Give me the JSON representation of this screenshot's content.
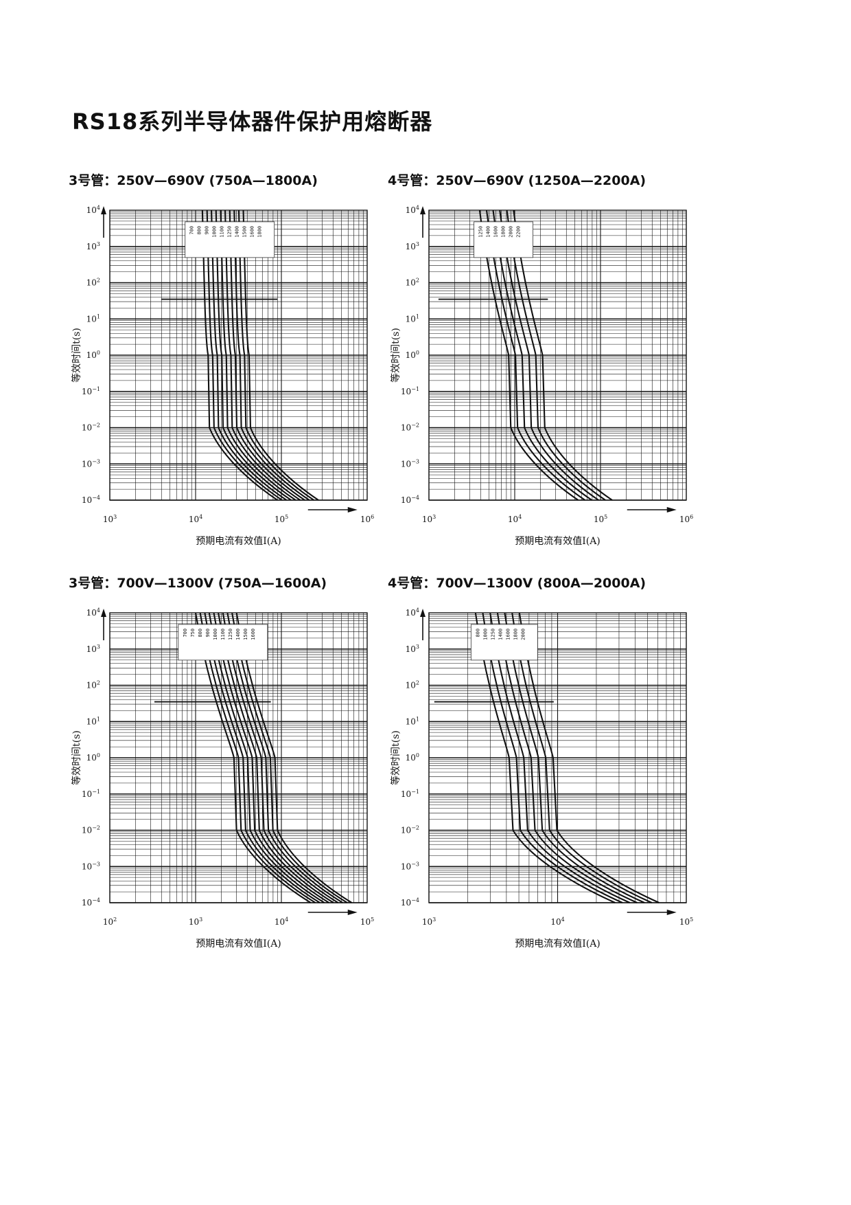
{
  "page": {
    "title": "RS18系列半导体器件保护用熔断器"
  },
  "chart_data": [
    {
      "type": "line",
      "title": "3号管：250V—690V (750A—1800A)",
      "xlabel": "预期电流有效值I(A)",
      "ylabel": "等效时间t(s)",
      "x_scale": "log",
      "y_scale": "log",
      "xlim": [
        1000,
        1000000
      ],
      "ylim": [
        0.0001,
        10000
      ],
      "x_ticks": [
        {
          "b": "10",
          "e": "3"
        },
        {
          "b": "10",
          "e": "4"
        },
        {
          "b": "10",
          "e": "5"
        },
        {
          "b": "10",
          "e": "6"
        }
      ],
      "y_ticks": [
        {
          "b": "10",
          "e": "4"
        },
        {
          "b": "10",
          "e": "3"
        },
        {
          "b": "10",
          "e": "2"
        },
        {
          "b": "10",
          "e": "1"
        },
        {
          "b": "10",
          "e": "0"
        },
        {
          "b": "10",
          "e": "−1"
        },
        {
          "b": "10",
          "e": "−2"
        },
        {
          "b": "10",
          "e": "−3"
        },
        {
          "b": "10",
          "e": "−4"
        }
      ],
      "grid": true,
      "legend": [
        "700",
        "800",
        "900",
        "1000",
        "1100",
        "1250",
        "1400",
        "1500",
        "1600",
        "1800"
      ],
      "legend_position": "top-center",
      "reference_t": 35,
      "curve_model": {
        "top_x": 12000,
        "knee_hi_x": 14000,
        "knee_lo_x": 14500,
        "bottom_x": 90000,
        "step_ratio": 1.13
      },
      "series": [
        {
          "name": "700",
          "x": [
            12000,
            14000,
            14500,
            90000
          ],
          "t": [
            10000,
            1,
            0.01,
            0.0001
          ]
        },
        {
          "name": "800",
          "x": [
            13600,
            15800,
            16400,
            101700
          ],
          "t": [
            10000,
            1,
            0.01,
            0.0001
          ]
        },
        {
          "name": "900",
          "x": [
            15300,
            17900,
            18500,
            114900
          ],
          "t": [
            10000,
            1,
            0.01,
            0.0001
          ]
        },
        {
          "name": "1000",
          "x": [
            17300,
            20200,
            20900,
            129900
          ],
          "t": [
            10000,
            1,
            0.01,
            0.0001
          ]
        },
        {
          "name": "1100",
          "x": [
            19600,
            22800,
            23600,
            146700
          ],
          "t": [
            10000,
            1,
            0.01,
            0.0001
          ]
        },
        {
          "name": "1250",
          "x": [
            22100,
            25800,
            26700,
            165800
          ],
          "t": [
            10000,
            1,
            0.01,
            0.0001
          ]
        },
        {
          "name": "1400",
          "x": [
            25000,
            29100,
            30200,
            187400
          ],
          "t": [
            10000,
            1,
            0.01,
            0.0001
          ]
        },
        {
          "name": "1500",
          "x": [
            28200,
            32900,
            34100,
            211700
          ],
          "t": [
            10000,
            1,
            0.01,
            0.0001
          ]
        },
        {
          "name": "1600",
          "x": [
            31900,
            37200,
            38600,
            239300
          ],
          "t": [
            10000,
            1,
            0.01,
            0.0001
          ]
        },
        {
          "name": "1800",
          "x": [
            36000,
            42000,
            43600,
            270400
          ],
          "t": [
            10000,
            1,
            0.01,
            0.0001
          ]
        }
      ]
    },
    {
      "type": "line",
      "title": "4号管：250V—690V (1250A—2200A)",
      "xlabel": "预期电流有效值I(A)",
      "ylabel": "等效时间t(s)",
      "x_scale": "log",
      "y_scale": "log",
      "xlim": [
        1000,
        1000000
      ],
      "ylim": [
        0.0001,
        10000
      ],
      "x_ticks": [
        {
          "b": "10",
          "e": "3"
        },
        {
          "b": "10",
          "e": "4"
        },
        {
          "b": "10",
          "e": "5"
        },
        {
          "b": "10",
          "e": "6"
        }
      ],
      "y_ticks": [
        {
          "b": "10",
          "e": "4"
        },
        {
          "b": "10",
          "e": "3"
        },
        {
          "b": "10",
          "e": "2"
        },
        {
          "b": "10",
          "e": "1"
        },
        {
          "b": "10",
          "e": "0"
        },
        {
          "b": "10",
          "e": "−1"
        },
        {
          "b": "10",
          "e": "−2"
        },
        {
          "b": "10",
          "e": "−3"
        },
        {
          "b": "10",
          "e": "−4"
        }
      ],
      "grid": true,
      "legend": [
        "1250",
        "1400",
        "1600",
        "1800",
        "2000",
        "2200"
      ],
      "legend_position": "top-center",
      "reference_t": 35,
      "curve_model": {
        "top_x": 3900,
        "knee_hi_x": 8500,
        "knee_lo_x": 9000,
        "bottom_x": 55000,
        "step_ratio": 1.2
      },
      "series": [
        {
          "name": "1250",
          "x": [
            3900,
            8500,
            9000,
            55000
          ],
          "t": [
            10000,
            1,
            0.01,
            0.0001
          ]
        },
        {
          "name": "1400",
          "x": [
            4700,
            10200,
            10800,
            66000
          ],
          "t": [
            10000,
            1,
            0.01,
            0.0001
          ]
        },
        {
          "name": "1600",
          "x": [
            5600,
            12200,
            13000,
            79200
          ],
          "t": [
            10000,
            1,
            0.01,
            0.0001
          ]
        },
        {
          "name": "1800",
          "x": [
            6700,
            14700,
            15600,
            95000
          ],
          "t": [
            10000,
            1,
            0.01,
            0.0001
          ]
        },
        {
          "name": "2000",
          "x": [
            8100,
            17600,
            18700,
            114000
          ],
          "t": [
            10000,
            1,
            0.01,
            0.0001
          ]
        },
        {
          "name": "2200",
          "x": [
            9700,
            21100,
            22400,
            136900
          ],
          "t": [
            10000,
            1,
            0.01,
            0.0001
          ]
        }
      ]
    },
    {
      "type": "line",
      "title": "3号管：700V—1300V (750A—1600A)",
      "xlabel": "预期电流有效值I(A)",
      "ylabel": "等效时间t(s)",
      "x_scale": "log",
      "y_scale": "log",
      "xlim": [
        100,
        100000
      ],
      "ylim": [
        0.0001,
        10000
      ],
      "x_ticks": [
        {
          "b": "10",
          "e": "2"
        },
        {
          "b": "10",
          "e": "3"
        },
        {
          "b": "10",
          "e": "4"
        },
        {
          "b": "10",
          "e": "5"
        }
      ],
      "y_ticks": [
        {
          "b": "10",
          "e": "4"
        },
        {
          "b": "10",
          "e": "3"
        },
        {
          "b": "10",
          "e": "2"
        },
        {
          "b": "10",
          "e": "1"
        },
        {
          "b": "10",
          "e": "0"
        },
        {
          "b": "10",
          "e": "−1"
        },
        {
          "b": "10",
          "e": "−2"
        },
        {
          "b": "10",
          "e": "−3"
        },
        {
          "b": "10",
          "e": "−4"
        }
      ],
      "grid": true,
      "legend": [
        "700",
        "750",
        "800",
        "900",
        "1000",
        "1100",
        "1250",
        "1400",
        "1500",
        "1600"
      ],
      "legend_position": "top-center",
      "reference_t": 35,
      "curve_model": {
        "top_x": 1000,
        "knee_hi_x": 2800,
        "knee_lo_x": 3000,
        "bottom_x": 22000,
        "step_ratio": 1.13
      },
      "series": [
        {
          "name": "700",
          "x": [
            1000,
            2800,
            3000,
            22000
          ],
          "t": [
            10000,
            1,
            0.01,
            0.0001
          ]
        },
        {
          "name": "750",
          "x": [
            1130,
            3160,
            3390,
            24900
          ],
          "t": [
            10000,
            1,
            0.01,
            0.0001
          ]
        },
        {
          "name": "800",
          "x": [
            1280,
            3580,
            3830,
            28100
          ],
          "t": [
            10000,
            1,
            0.01,
            0.0001
          ]
        },
        {
          "name": "900",
          "x": [
            1440,
            4040,
            4330,
            31700
          ],
          "t": [
            10000,
            1,
            0.01,
            0.0001
          ]
        },
        {
          "name": "1000",
          "x": [
            1630,
            4570,
            4890,
            35900
          ],
          "t": [
            10000,
            1,
            0.01,
            0.0001
          ]
        },
        {
          "name": "1100",
          "x": [
            1840,
            5160,
            5530,
            40500
          ],
          "t": [
            10000,
            1,
            0.01,
            0.0001
          ]
        },
        {
          "name": "1250",
          "x": [
            2080,
            5830,
            6250,
            45800
          ],
          "t": [
            10000,
            1,
            0.01,
            0.0001
          ]
        },
        {
          "name": "1400",
          "x": [
            2350,
            6590,
            7060,
            51800
          ],
          "t": [
            10000,
            1,
            0.01,
            0.0001
          ]
        },
        {
          "name": "1500",
          "x": [
            2660,
            7440,
            7970,
            58500
          ],
          "t": [
            10000,
            1,
            0.01,
            0.0001
          ]
        },
        {
          "name": "1600",
          "x": [
            3000,
            8410,
            9010,
            66100
          ],
          "t": [
            10000,
            1,
            0.01,
            0.0001
          ]
        }
      ]
    },
    {
      "type": "line",
      "title": "4号管：700V—1300V (800A—2000A)",
      "xlabel": "预期电流有效值I(A)",
      "ylabel": "等效时间t(s)",
      "x_scale": "log",
      "y_scale": "log",
      "xlim": [
        1000,
        100000
      ],
      "ylim": [
        0.0001,
        10000
      ],
      "x_ticks": [
        {
          "b": "10",
          "e": "3"
        },
        {
          "b": "10",
          "e": "4"
        },
        {
          "b": "10",
          "e": "5"
        }
      ],
      "y_ticks": [
        {
          "b": "10",
          "e": "4"
        },
        {
          "b": "10",
          "e": "3"
        },
        {
          "b": "10",
          "e": "2"
        },
        {
          "b": "10",
          "e": "1"
        },
        {
          "b": "10",
          "e": "0"
        },
        {
          "b": "10",
          "e": "−1"
        },
        {
          "b": "10",
          "e": "−2"
        },
        {
          "b": "10",
          "e": "−3"
        },
        {
          "b": "10",
          "e": "−4"
        }
      ],
      "grid": true,
      "legend": [
        "800",
        "1000",
        "1250",
        "1400",
        "1600",
        "1800",
        "2000"
      ],
      "legend_position": "top-center",
      "reference_t": 35,
      "curve_model": {
        "top_x": 2300,
        "knee_hi_x": 4200,
        "knee_lo_x": 4500,
        "bottom_x": 28000,
        "step_ratio": 1.14
      },
      "series": [
        {
          "name": "800",
          "x": [
            2300,
            4200,
            4500,
            28000
          ],
          "t": [
            10000,
            1,
            0.01,
            0.0001
          ]
        },
        {
          "name": "1000",
          "x": [
            2620,
            4790,
            5130,
            31900
          ],
          "t": [
            10000,
            1,
            0.01,
            0.0001
          ]
        },
        {
          "name": "1250",
          "x": [
            2990,
            5460,
            5850,
            36400
          ],
          "t": [
            10000,
            1,
            0.01,
            0.0001
          ]
        },
        {
          "name": "1400",
          "x": [
            3410,
            6220,
            6670,
            41500
          ],
          "t": [
            10000,
            1,
            0.01,
            0.0001
          ]
        },
        {
          "name": "1600",
          "x": [
            3880,
            7090,
            7600,
            47300
          ],
          "t": [
            10000,
            1,
            0.01,
            0.0001
          ]
        },
        {
          "name": "1800",
          "x": [
            4430,
            8090,
            8660,
            53900
          ],
          "t": [
            10000,
            1,
            0.01,
            0.0001
          ]
        },
        {
          "name": "2000",
          "x": [
            5050,
            9220,
            9880,
            61500
          ],
          "t": [
            10000,
            1,
            0.01,
            0.0001
          ]
        }
      ]
    }
  ]
}
